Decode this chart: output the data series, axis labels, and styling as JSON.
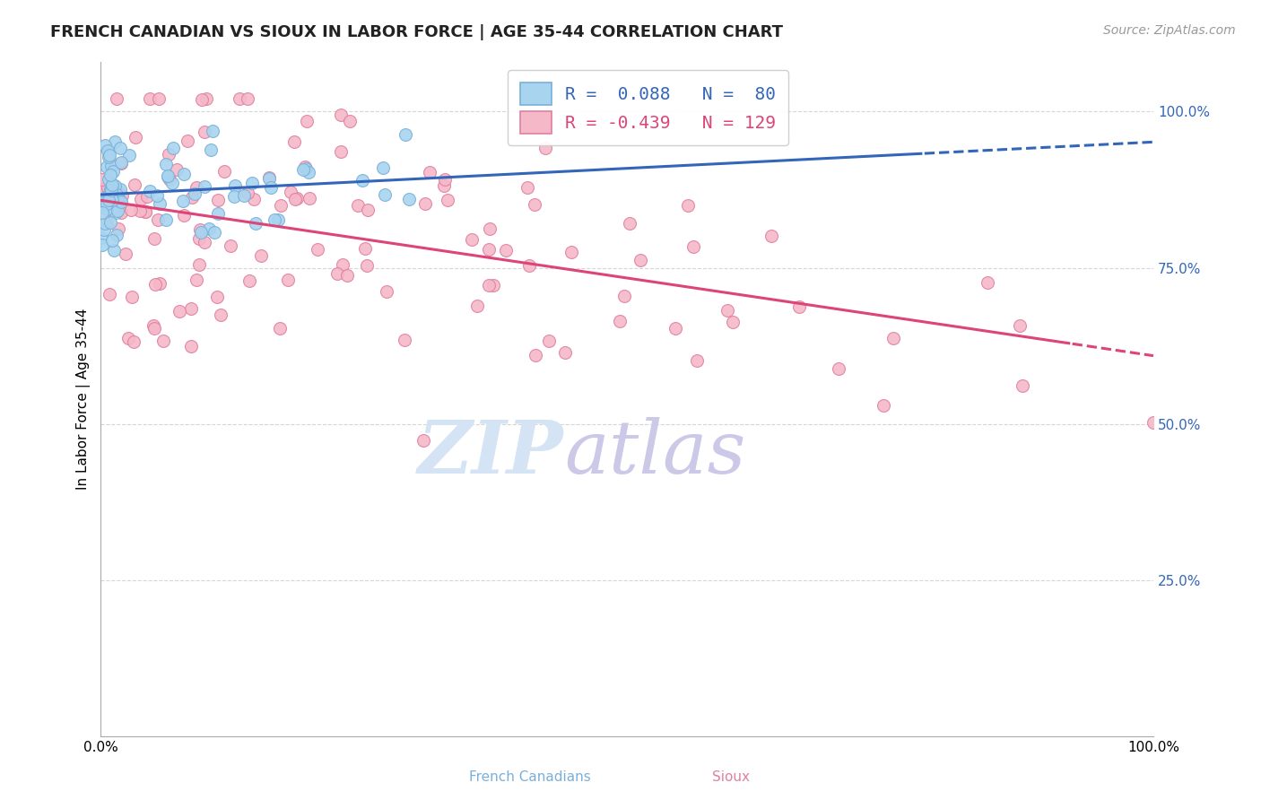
{
  "title": "FRENCH CANADIAN VS SIOUX IN LABOR FORCE | AGE 35-44 CORRELATION CHART",
  "source": "Source: ZipAtlas.com",
  "ylabel": "In Labor Force | Age 35-44",
  "ytick_labels": [
    "100.0%",
    "75.0%",
    "50.0%",
    "25.0%"
  ],
  "ytick_values": [
    1.0,
    0.75,
    0.5,
    0.25
  ],
  "french_canadian_color": "#a8d4f0",
  "sioux_color": "#f5b8c8",
  "french_canadian_edge": "#7ab0d8",
  "sioux_edge": "#e080a0",
  "blue_line_color": "#3366bb",
  "pink_line_color": "#dd4477",
  "R_french": 0.088,
  "N_french": 80,
  "R_sioux": -0.439,
  "N_sioux": 129,
  "watermark_zip": "ZIP",
  "watermark_atlas": "atlas",
  "watermark_color_zip": "#d0dff0",
  "watermark_color_atlas": "#d0c8e8",
  "background_color": "#ffffff",
  "grid_color": "#cccccc",
  "title_fontsize": 13,
  "source_fontsize": 10,
  "axis_label_fontsize": 11,
  "tick_fontsize": 11,
  "legend_fontsize": 14,
  "watermark_fontsize": 60,
  "marker_size": 10,
  "legend_r1": "R =  0.088   N =  80",
  "legend_r2": "R = -0.439   N = 129"
}
